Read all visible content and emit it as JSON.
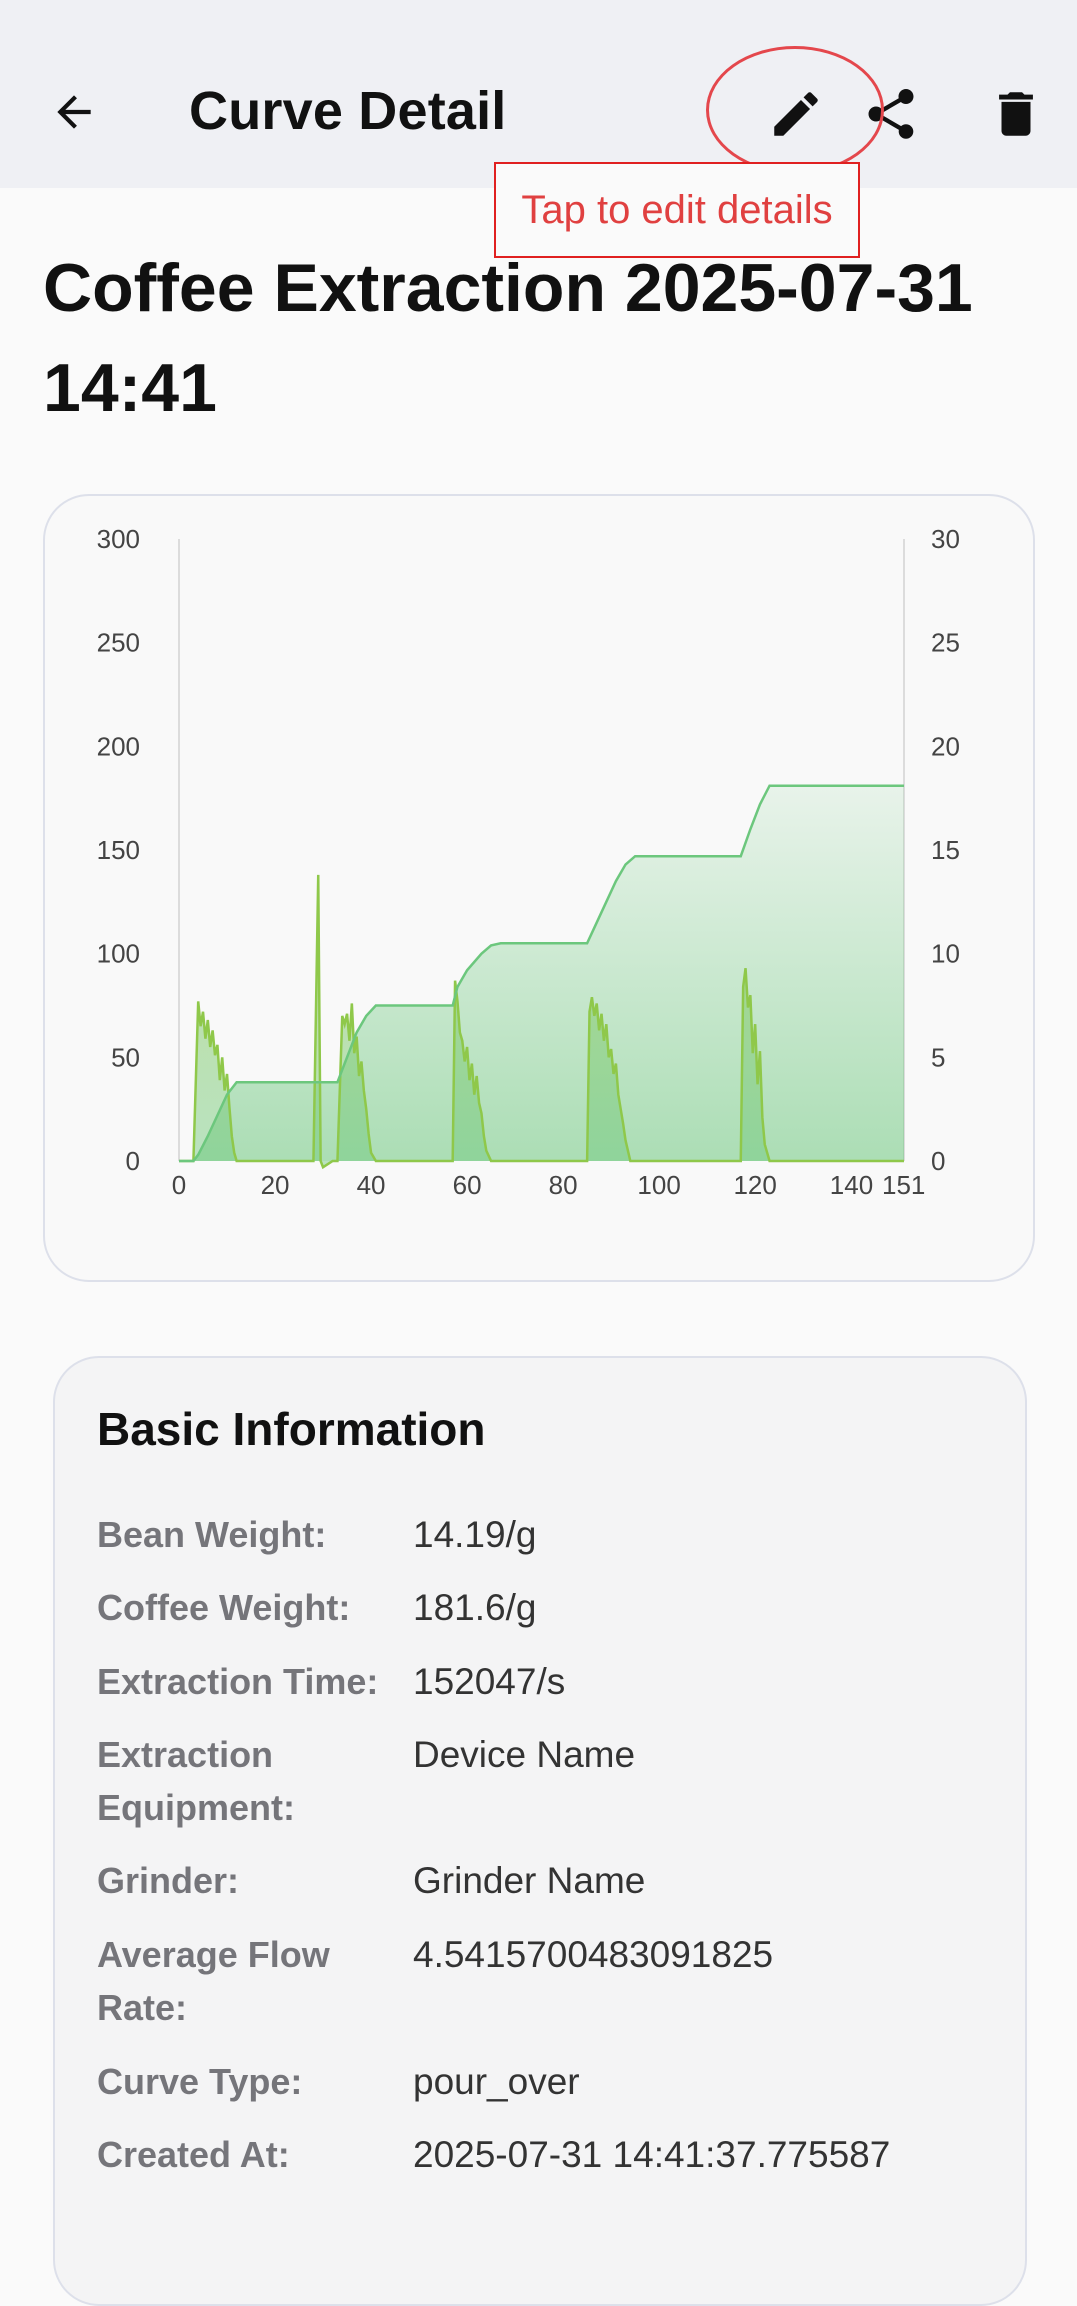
{
  "appbar": {
    "title": "Curve Detail",
    "back_icon": "arrow-back-icon",
    "actions": [
      "edit-icon",
      "share-icon",
      "delete-icon"
    ]
  },
  "tooltip": "Tap to edit details",
  "page": {
    "title": "Coffee Extraction 2025-07-31 14:41"
  },
  "chart_data": {
    "type": "area",
    "x_ticks": [
      "0",
      "20",
      "40",
      "60",
      "80",
      "100",
      "120",
      "140",
      "151"
    ],
    "y_left_ticks": [
      "0",
      "50",
      "100",
      "150",
      "200",
      "250",
      "300"
    ],
    "y_right_ticks": [
      "0",
      "5",
      "10",
      "15",
      "20",
      "25",
      "30"
    ],
    "xlim": [
      0,
      151
    ],
    "ylim_left": [
      0,
      300
    ],
    "ylim_right": [
      0,
      30
    ],
    "colors": {
      "weight": "#6cc77d",
      "weight_fill": "#cfe9d6",
      "flow": "#8fc84a"
    },
    "series": [
      {
        "axis": "left",
        "x": [
          0,
          3,
          4,
          6,
          8,
          10,
          12,
          33,
          35,
          37,
          39,
          41,
          57,
          58,
          60,
          63,
          65,
          67,
          85,
          87,
          89,
          91,
          93,
          95,
          117,
          119,
          121,
          123,
          151
        ],
        "values": [
          0,
          0,
          3,
          12,
          22,
          32,
          38,
          38,
          50,
          62,
          70,
          75,
          75,
          84,
          92,
          100,
          104,
          105,
          105,
          115,
          125,
          135,
          143,
          147,
          147,
          160,
          172,
          181,
          181
        ]
      },
      {
        "axis": "right",
        "x": [
          0,
          3,
          4,
          4.5,
          5,
          5.5,
          6,
          6.5,
          7,
          7.5,
          8,
          8.5,
          9,
          9.5,
          10,
          10.5,
          11,
          11.5,
          12,
          28,
          29,
          29.5,
          30,
          32,
          33,
          34,
          34.5,
          35,
          35.5,
          36,
          36.5,
          37,
          37.5,
          38,
          38.5,
          39,
          39.5,
          40,
          41,
          57,
          57.5,
          58,
          58.5,
          59,
          59.5,
          60,
          60.5,
          61,
          61.5,
          62,
          62.5,
          63,
          63.5,
          64,
          65,
          85,
          85.5,
          86,
          86.5,
          87,
          87.5,
          88,
          88.5,
          89,
          89.5,
          90,
          90.5,
          91,
          91.5,
          92,
          92.5,
          93,
          94,
          117,
          117.5,
          118,
          118.5,
          119,
          119.5,
          120,
          120.5,
          121,
          121.5,
          122,
          123,
          151
        ],
        "values": [
          0,
          0,
          7.7,
          6.5,
          7.2,
          5.9,
          6.8,
          5.5,
          6.3,
          5.1,
          5.6,
          3.9,
          5.0,
          3.4,
          4.2,
          2.6,
          1.2,
          0.4,
          0,
          0,
          13.8,
          0,
          -0.3,
          0,
          0,
          7.0,
          6.6,
          7.1,
          5.8,
          7.6,
          5.2,
          6.0,
          4.1,
          4.8,
          3.4,
          2.5,
          1.3,
          0.4,
          0,
          0,
          8.7,
          7.7,
          6.2,
          5.8,
          4.8,
          5.5,
          3.9,
          4.7,
          3.2,
          4.1,
          2.8,
          2.3,
          1.2,
          0.5,
          0,
          0,
          7.2,
          7.9,
          7.0,
          7.6,
          6.3,
          7.1,
          5.8,
          6.6,
          5.0,
          5.4,
          4.2,
          4.7,
          3.2,
          2.5,
          1.8,
          1.0,
          0,
          0,
          8.4,
          9.3,
          7.4,
          8.0,
          5.2,
          6.6,
          3.7,
          5.3,
          2.1,
          0.8,
          0,
          0
        ]
      }
    ]
  },
  "basic_info": {
    "title": "Basic Information",
    "rows": [
      {
        "label": "Bean Weight:",
        "value": "14.19/g"
      },
      {
        "label": "Coffee Weight:",
        "value": "181.6/g"
      },
      {
        "label": "Extraction Time:",
        "value": "152047/s"
      },
      {
        "label": "Extraction Equipment:",
        "value": "Device Name"
      },
      {
        "label": "Grinder:",
        "value": "Grinder Name"
      },
      {
        "label": "Average Flow Rate:",
        "value": "4.5415700483091825"
      },
      {
        "label": "Curve Type:",
        "value": "pour_over"
      },
      {
        "label": "Created At:",
        "value": "2025-07-31 14:41:37.775587"
      }
    ]
  }
}
